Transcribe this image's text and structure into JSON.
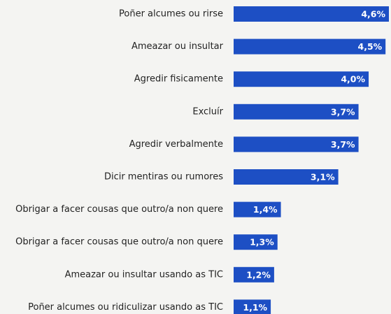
{
  "chart_data": {
    "type": "bar",
    "orientation": "horizontal",
    "color": "#1d4fc4",
    "categories": [
      "Poñer alcumes ou rirse",
      "Ameazar ou insultar",
      "Agredir fisicamente",
      "Excluír",
      "Agredir verbalmente",
      "Dicir mentiras ou rumores",
      "Obrigar a facer cousas que outro/a non quere",
      "Obrigar a facer cousas que outro/a non quere",
      "Ameazar ou insultar usando as TIC",
      "Poñer alcumes ou ridiculizar usando as TIC"
    ],
    "values": [
      4.6,
      4.5,
      4.0,
      3.7,
      3.7,
      3.1,
      1.4,
      1.3,
      1.2,
      1.1
    ],
    "value_labels": [
      "4,6%",
      "4,5%",
      "4,0%",
      "3,7%",
      "3,7%",
      "3,1%",
      "1,4%",
      "1,3%",
      "1,2%",
      "1,1%"
    ]
  }
}
